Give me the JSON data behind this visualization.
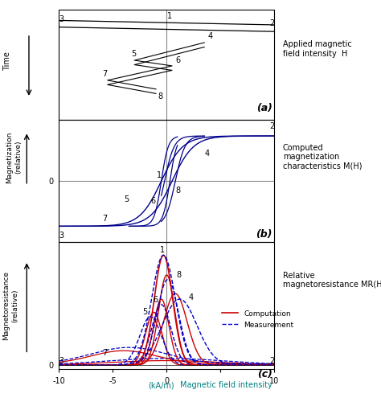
{
  "title_a": "Applied magnetic\nfield intensity  H",
  "title_b": "Computed\nmagnetization\ncharacteristics M(H)",
  "title_c": "Relative\nmagnetoresistance MR(H)",
  "ylabel_a": "Time",
  "ylabel_b": "Magnetization\n(relative)",
  "ylabel_c": "Magnetoresistance\n(relative)",
  "legend_computation": "Computation",
  "legend_measurement": "Measurement",
  "bg_color": "#ffffff",
  "blue": "#00008B",
  "red": "#CC0000",
  "dash_blue": "#0000CC",
  "black": "#000000",
  "gray": "#888888",
  "teal": "#008080"
}
